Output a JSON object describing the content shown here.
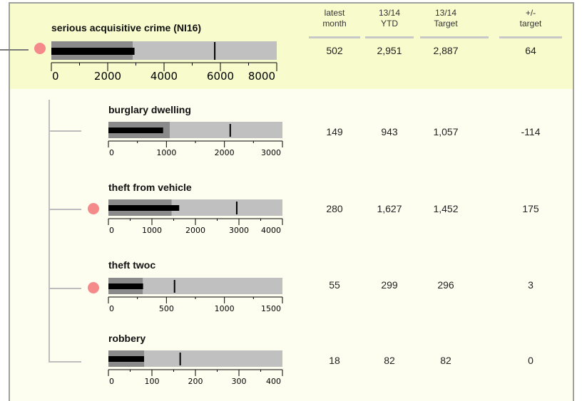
{
  "header": {
    "latest_month": [
      "latest",
      "month"
    ],
    "ytd": [
      "13/14",
      "YTD"
    ],
    "target": [
      "13/14",
      "Target"
    ],
    "diff": [
      "+/-",
      "target"
    ]
  },
  "chart_data": {
    "type": "bullet",
    "colors": {
      "band_dark": "#8a8a8a",
      "band_light": "#c0c0c0",
      "bar": "#000000",
      "marker": "#000000",
      "alert_dot": "#f58a8a"
    },
    "rows": [
      {
        "name": "serious acquisitive crime (NI16)",
        "axis_max": 8000,
        "ticks": [
          0,
          2000,
          4000,
          6000,
          8000
        ],
        "band_dark": 2887,
        "bar_value": 2951,
        "marker": 5800,
        "alert": true,
        "latest_month": "502",
        "ytd": "2,951",
        "target": "2,887",
        "diff": "64"
      },
      {
        "name": "burglary dwelling",
        "axis_max": 3000,
        "ticks": [
          0,
          1000,
          2000,
          3000
        ],
        "band_dark": 1057,
        "bar_value": 943,
        "marker": 2100,
        "alert": false,
        "latest_month": "149",
        "ytd": "943",
        "target": "1,057",
        "diff": "-114"
      },
      {
        "name": "theft from vehicle",
        "axis_max": 4000,
        "ticks": [
          0,
          1000,
          2000,
          3000,
          4000
        ],
        "band_dark": 1452,
        "bar_value": 1627,
        "marker": 2950,
        "alert": true,
        "latest_month": "280",
        "ytd": "1,627",
        "target": "1,452",
        "diff": "175"
      },
      {
        "name": "theft twoc",
        "axis_max": 1500,
        "ticks": [
          0,
          500,
          1000,
          1500
        ],
        "band_dark": 296,
        "bar_value": 299,
        "marker": 570,
        "alert": true,
        "latest_month": "55",
        "ytd": "299",
        "target": "296",
        "diff": "3"
      },
      {
        "name": "robbery",
        "axis_max": 400,
        "ticks": [
          0,
          100,
          200,
          300,
          400
        ],
        "band_dark": 82,
        "bar_value": 82,
        "marker": 165,
        "alert": false,
        "latest_month": "18",
        "ytd": "82",
        "target": "82",
        "diff": "0"
      }
    ]
  }
}
